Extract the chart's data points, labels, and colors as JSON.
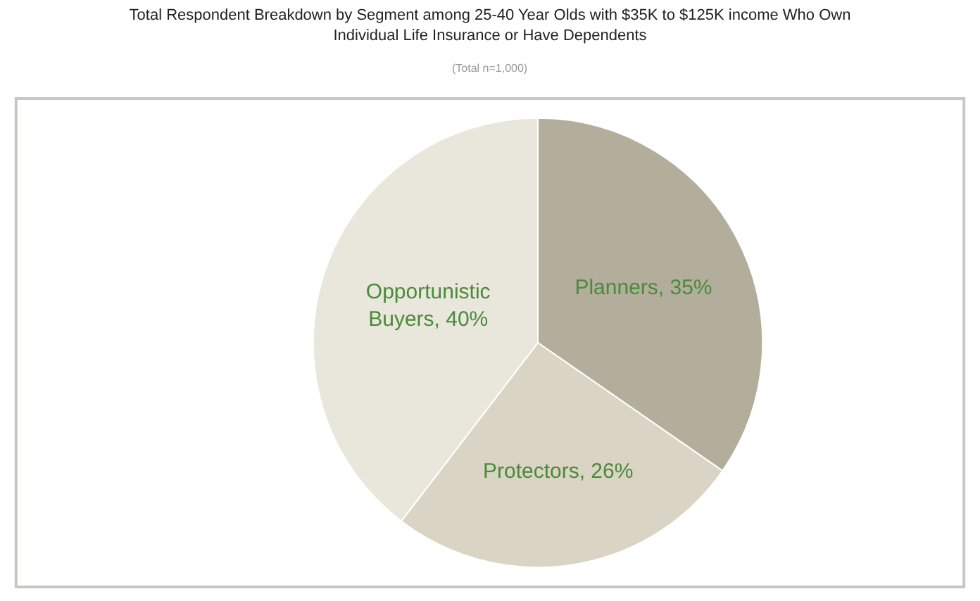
{
  "chart_data": {
    "type": "pie",
    "title": "Total Respondent Breakdown by Segment among 25-40 Year Olds with $35K to $125K income Who Own Individual Life Insurance or Have Dependents",
    "subtitle": "(Total n=1,000)",
    "categories": [
      "Planners",
      "Protectors",
      "Opportunistic\nBuyers"
    ],
    "values": [
      35,
      26,
      40
    ],
    "value_labels": [
      "35%",
      "26%",
      "40%"
    ],
    "colors": [
      "#b3ae9c",
      "#d9d4c3",
      "#e9e7dc"
    ],
    "legend": false
  }
}
